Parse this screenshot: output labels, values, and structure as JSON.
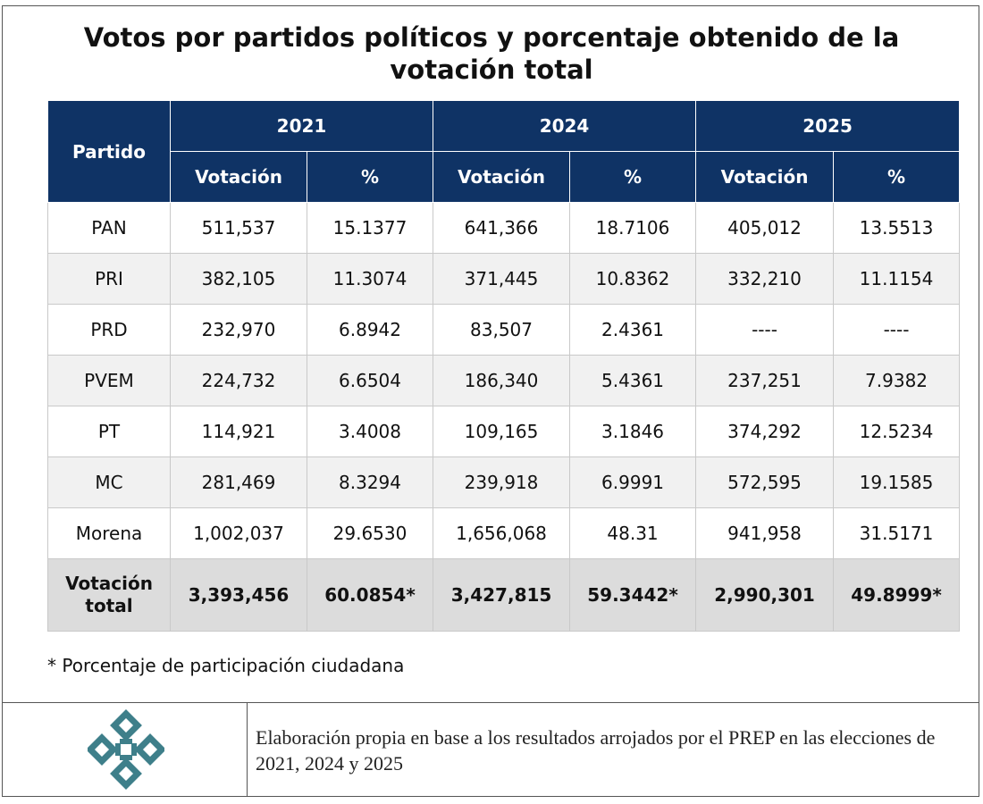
{
  "title": "Votos por partidos políticos y porcentaje obtenido de la votación total",
  "colors": {
    "header_bg": "#0f3365",
    "row_alt": "#f1f1f1",
    "total_bg": "#dcdcdc",
    "logo": "#3e7f8a"
  },
  "chart_data": {
    "type": "table",
    "header": {
      "partido": "Partido",
      "years": [
        "2021",
        "2024",
        "2025"
      ],
      "sub": [
        "Votación",
        "%"
      ]
    },
    "rows": [
      {
        "partido": "PAN",
        "values": [
          "511,537",
          "15.1377",
          "641,366",
          "18.7106",
          "405,012",
          "13.5513"
        ]
      },
      {
        "partido": "PRI",
        "values": [
          "382,105",
          "11.3074",
          "371,445",
          "10.8362",
          "332,210",
          "11.1154"
        ]
      },
      {
        "partido": "PRD",
        "values": [
          "232,970",
          "6.8942",
          "83,507",
          "2.4361",
          "----",
          "----"
        ]
      },
      {
        "partido": "PVEM",
        "values": [
          "224,732",
          "6.6504",
          "186,340",
          "5.4361",
          "237,251",
          "7.9382"
        ]
      },
      {
        "partido": "PT",
        "values": [
          "114,921",
          "3.4008",
          "109,165",
          "3.1846",
          "374,292",
          "12.5234"
        ]
      },
      {
        "partido": "MC",
        "values": [
          "281,469",
          "8.3294",
          "239,918",
          "6.9991",
          "572,595",
          "19.1585"
        ]
      },
      {
        "partido": "Morena",
        "values": [
          "1,002,037",
          "29.6530",
          "1,656,068",
          "48.31",
          "941,958",
          "31.5171"
        ]
      }
    ],
    "total": {
      "label_line1": "Votación",
      "label_line2": "total",
      "values": [
        "3,393,456",
        "60.0854*",
        "3,427,815",
        "59.3442*",
        "2,990,301",
        "49.8999*"
      ]
    }
  },
  "note": "* Porcentaje de participación ciudadana",
  "footer": {
    "logo_icon": "institution-logo-icon",
    "source": "Elaboración propia en base a los resultados arrojados por el PREP en las elecciones de 2021, 2024 y 2025"
  }
}
